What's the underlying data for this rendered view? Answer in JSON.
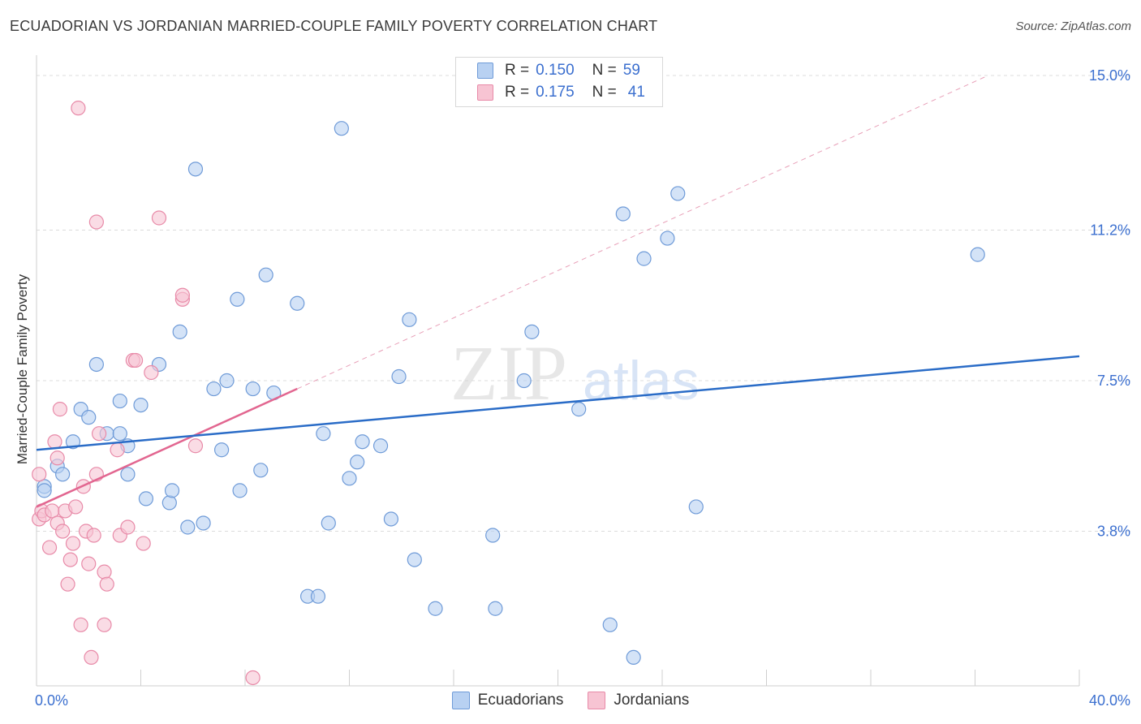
{
  "title": "ECUADORIAN VS JORDANIAN MARRIED-COUPLE FAMILY POVERTY CORRELATION CHART",
  "source": "Source: ZipAtlas.com",
  "watermark": {
    "zip": "ZIP",
    "atlas": "atlas"
  },
  "legend": {
    "rows": [
      {
        "r_label": "R =",
        "r_value": "0.150",
        "n_label": "N =",
        "n_value": "59"
      },
      {
        "r_label": "R =",
        "r_value": "0.175",
        "n_label": "N =",
        "n_value": "41"
      }
    ]
  },
  "chart_data": {
    "type": "scatter",
    "title": "ECUADORIAN VS JORDANIAN MARRIED-COUPLE FAMILY POVERTY CORRELATION CHART",
    "xlabel": "",
    "ylabel": "Married-Couple Family Poverty",
    "xlim": [
      0,
      40
    ],
    "ylim": [
      0,
      15.3
    ],
    "x_tick_labels": [
      "0.0%",
      "40.0%"
    ],
    "y_ticks": [
      3.8,
      7.5,
      11.2,
      15.0
    ],
    "y_tick_labels": [
      "3.8%",
      "7.5%",
      "11.2%",
      "15.0%"
    ],
    "grid": true,
    "legend_position": "top-center",
    "colors": {
      "ecuadorians_fill": "#b8d1f2",
      "ecuadorians_stroke": "#6f9bd8",
      "ecuadorians_line": "#2a6cc7",
      "jordanians_fill": "#f7c4d3",
      "jordanians_stroke": "#e88aa8",
      "jordanians_line": "#e26690",
      "tick_label": "#3b6fcf"
    },
    "series": [
      {
        "name": "Ecuadorians",
        "r": 0.15,
        "n": 59,
        "trend": {
          "x": [
            0,
            40
          ],
          "y": [
            5.8,
            8.1
          ]
        },
        "points": [
          [
            0.3,
            4.9
          ],
          [
            0.8,
            5.4
          ],
          [
            1.0,
            5.2
          ],
          [
            1.4,
            6.0
          ],
          [
            1.7,
            6.8
          ],
          [
            2.0,
            6.6
          ],
          [
            2.3,
            7.9
          ],
          [
            2.7,
            6.2
          ],
          [
            3.2,
            6.2
          ],
          [
            3.2,
            7.0
          ],
          [
            3.5,
            5.2
          ],
          [
            3.5,
            5.9
          ],
          [
            4.0,
            6.9
          ],
          [
            4.2,
            4.6
          ],
          [
            4.7,
            7.9
          ],
          [
            5.1,
            4.5
          ],
          [
            5.2,
            4.8
          ],
          [
            5.5,
            8.7
          ],
          [
            5.8,
            3.9
          ],
          [
            6.1,
            12.7
          ],
          [
            6.4,
            4.0
          ],
          [
            6.8,
            7.3
          ],
          [
            7.1,
            5.8
          ],
          [
            7.3,
            7.5
          ],
          [
            7.7,
            9.5
          ],
          [
            7.8,
            4.8
          ],
          [
            8.3,
            7.3
          ],
          [
            8.6,
            5.3
          ],
          [
            8.8,
            10.1
          ],
          [
            9.1,
            7.2
          ],
          [
            10.0,
            9.4
          ],
          [
            10.4,
            2.2
          ],
          [
            10.8,
            2.2
          ],
          [
            11.0,
            6.2
          ],
          [
            11.2,
            4.0
          ],
          [
            11.7,
            13.7
          ],
          [
            12.0,
            5.1
          ],
          [
            12.3,
            5.5
          ],
          [
            12.5,
            6.0
          ],
          [
            13.2,
            5.9
          ],
          [
            13.6,
            4.1
          ],
          [
            13.9,
            7.6
          ],
          [
            14.3,
            9.0
          ],
          [
            14.5,
            3.1
          ],
          [
            15.3,
            1.9
          ],
          [
            17.5,
            3.7
          ],
          [
            17.6,
            1.9
          ],
          [
            18.7,
            7.5
          ],
          [
            19.0,
            8.7
          ],
          [
            20.8,
            6.8
          ],
          [
            22.0,
            1.5
          ],
          [
            22.5,
            11.6
          ],
          [
            22.9,
            0.7
          ],
          [
            23.3,
            10.5
          ],
          [
            24.2,
            11.0
          ],
          [
            24.6,
            12.1
          ],
          [
            25.3,
            4.4
          ],
          [
            36.1,
            10.6
          ],
          [
            0.3,
            4.8
          ]
        ]
      },
      {
        "name": "Jordanians",
        "r": 0.175,
        "n": 41,
        "trend": {
          "x": [
            0,
            10.0
          ],
          "y": [
            4.4,
            7.3
          ]
        },
        "trend_dashed": {
          "x": [
            10.0,
            36.5
          ],
          "y": [
            7.3,
            15.0
          ]
        },
        "points": [
          [
            0.1,
            5.2
          ],
          [
            0.1,
            4.1
          ],
          [
            0.2,
            4.3
          ],
          [
            0.3,
            4.2
          ],
          [
            0.5,
            3.4
          ],
          [
            0.6,
            4.3
          ],
          [
            0.7,
            6.0
          ],
          [
            0.8,
            4.0
          ],
          [
            0.8,
            5.6
          ],
          [
            0.9,
            6.8
          ],
          [
            1.0,
            3.8
          ],
          [
            1.1,
            4.3
          ],
          [
            1.2,
            2.5
          ],
          [
            1.3,
            3.1
          ],
          [
            1.4,
            3.5
          ],
          [
            1.5,
            4.4
          ],
          [
            1.7,
            1.5
          ],
          [
            1.8,
            4.9
          ],
          [
            1.9,
            3.8
          ],
          [
            2.0,
            3.0
          ],
          [
            2.1,
            0.7
          ],
          [
            2.2,
            3.7
          ],
          [
            2.3,
            11.4
          ],
          [
            2.3,
            5.2
          ],
          [
            2.4,
            6.2
          ],
          [
            2.6,
            2.8
          ],
          [
            2.6,
            1.5
          ],
          [
            2.7,
            2.5
          ],
          [
            3.1,
            5.8
          ],
          [
            3.2,
            3.7
          ],
          [
            3.5,
            3.9
          ],
          [
            3.7,
            8.0
          ],
          [
            3.8,
            8.0
          ],
          [
            4.1,
            3.5
          ],
          [
            4.4,
            7.7
          ],
          [
            4.7,
            11.5
          ],
          [
            5.6,
            9.5
          ],
          [
            5.6,
            9.6
          ],
          [
            6.1,
            5.9
          ],
          [
            8.3,
            0.2
          ],
          [
            1.6,
            14.2
          ]
        ]
      }
    ]
  },
  "bottom_legend": [
    "Ecuadorians",
    "Jordanians"
  ]
}
